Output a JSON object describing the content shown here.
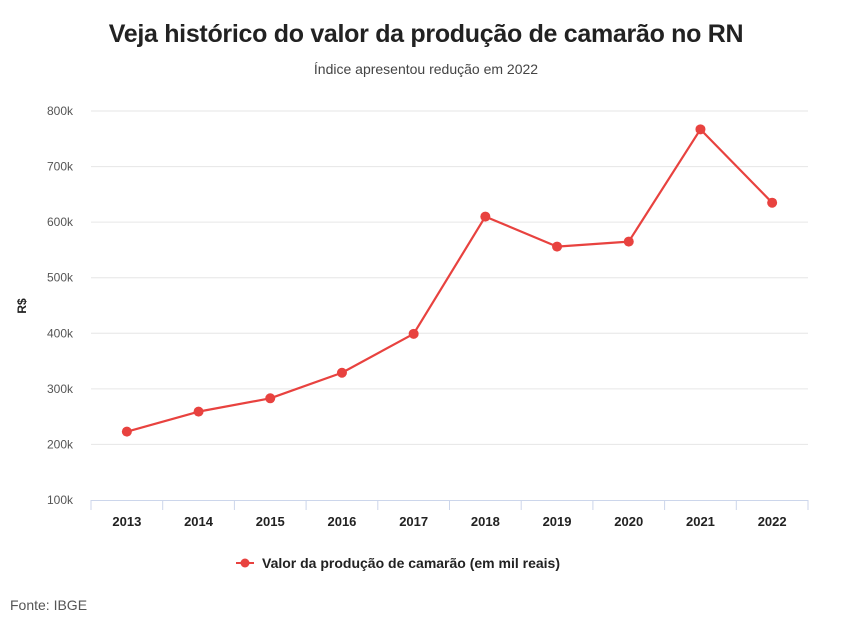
{
  "chart_data": {
    "type": "line",
    "title": "Veja histórico do valor da produção de camarão no RN",
    "subtitle": "Índice apresentou redução em 2022",
    "xlabel": "",
    "ylabel": "R$",
    "categories": [
      "2013",
      "2014",
      "2015",
      "2016",
      "2017",
      "2018",
      "2019",
      "2020",
      "2021",
      "2022"
    ],
    "series": [
      {
        "name": "Valor da produção de camarão (em mil reais)",
        "color": "#e8423f",
        "values": [
          223000,
          259000,
          283000,
          329000,
          399000,
          610000,
          556000,
          565000,
          767000,
          635000
        ]
      }
    ],
    "yticks": [
      100000,
      200000,
      300000,
      400000,
      500000,
      600000,
      700000,
      800000
    ],
    "ytick_labels": [
      "100k",
      "200k",
      "300k",
      "400k",
      "500k",
      "600k",
      "700k",
      "800k"
    ],
    "ylim": [
      100000,
      800000
    ],
    "grid": true,
    "legend_position": "bottom-center"
  },
  "source": "Fonte: IBGE",
  "colors": {
    "gridline": "#e6e6e6",
    "axis": "#ccd6eb"
  }
}
